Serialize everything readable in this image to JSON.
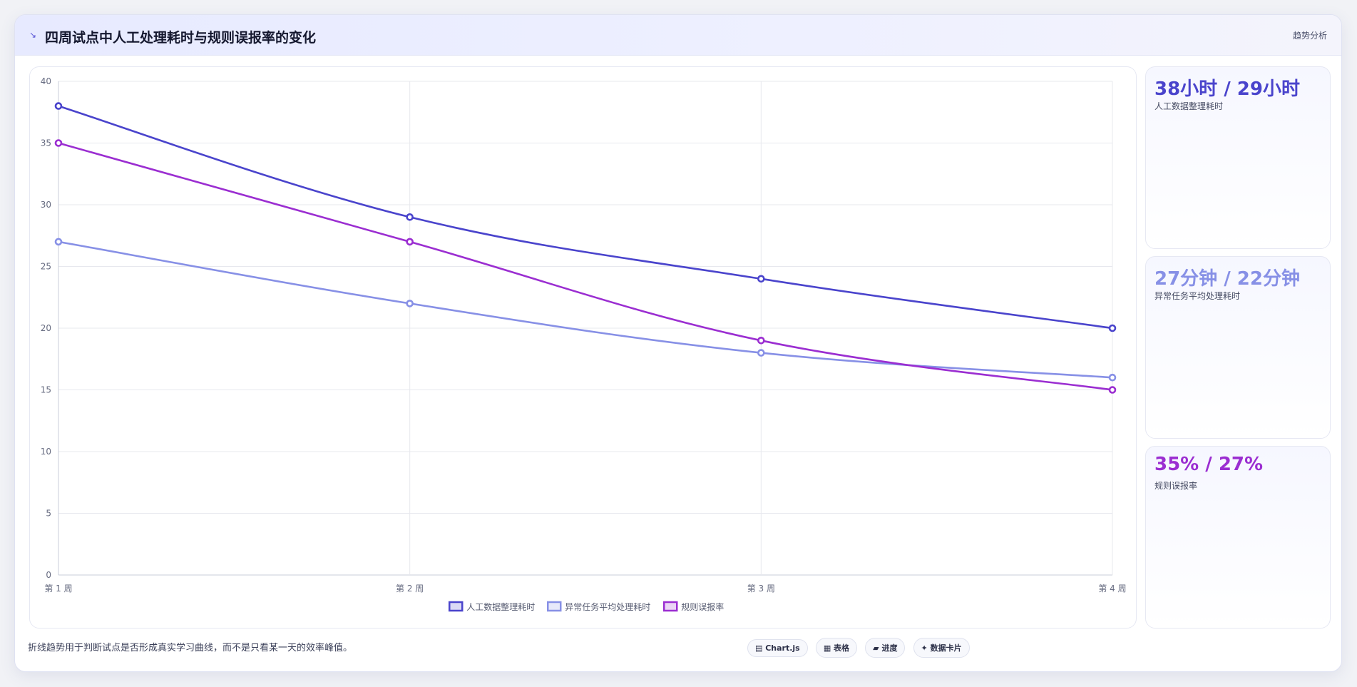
{
  "header": {
    "icon": "↘",
    "title": "四周试点中人工处理耗时与规则误报率的变化",
    "tag": "趋势分析"
  },
  "chart_data": {
    "type": "line",
    "categories": [
      "第 1 周",
      "第 2 周",
      "第 3 周",
      "第 4 周"
    ],
    "ylim": [
      0,
      40
    ],
    "yticks": [
      0,
      5,
      10,
      15,
      20,
      25,
      30,
      35,
      40
    ],
    "grid": true,
    "legend": "bottom-center",
    "series": [
      {
        "name": "人工数据整理耗时",
        "values": [
          38,
          29,
          24,
          20
        ],
        "color": "#4a44cc"
      },
      {
        "name": "异常任务平均处理耗时",
        "values": [
          27,
          22,
          18,
          16
        ],
        "color": "#8790e6"
      },
      {
        "name": "规则误报率",
        "values": [
          35,
          27,
          19,
          15
        ],
        "color": "#9b2ed1"
      }
    ]
  },
  "stats": [
    {
      "value": "38小时 / 29小时",
      "label": "人工数据整理耗时",
      "color": "#4a44cc"
    },
    {
      "value": "27分钟 / 22分钟",
      "label": "异常任务平均处理耗时",
      "color": "#8790e6"
    },
    {
      "value": "35% / 27%",
      "label": "规则误报率",
      "color": "#9b2ed1"
    }
  ],
  "footer": {
    "note": "折线趋势用于判断试点是否形成真实学习曲线，而不是只看某一天的效率峰值。",
    "pills": [
      "▤ Chart.js",
      "▦ 表格",
      "▰ 进度",
      "✦ 数据卡片"
    ]
  }
}
